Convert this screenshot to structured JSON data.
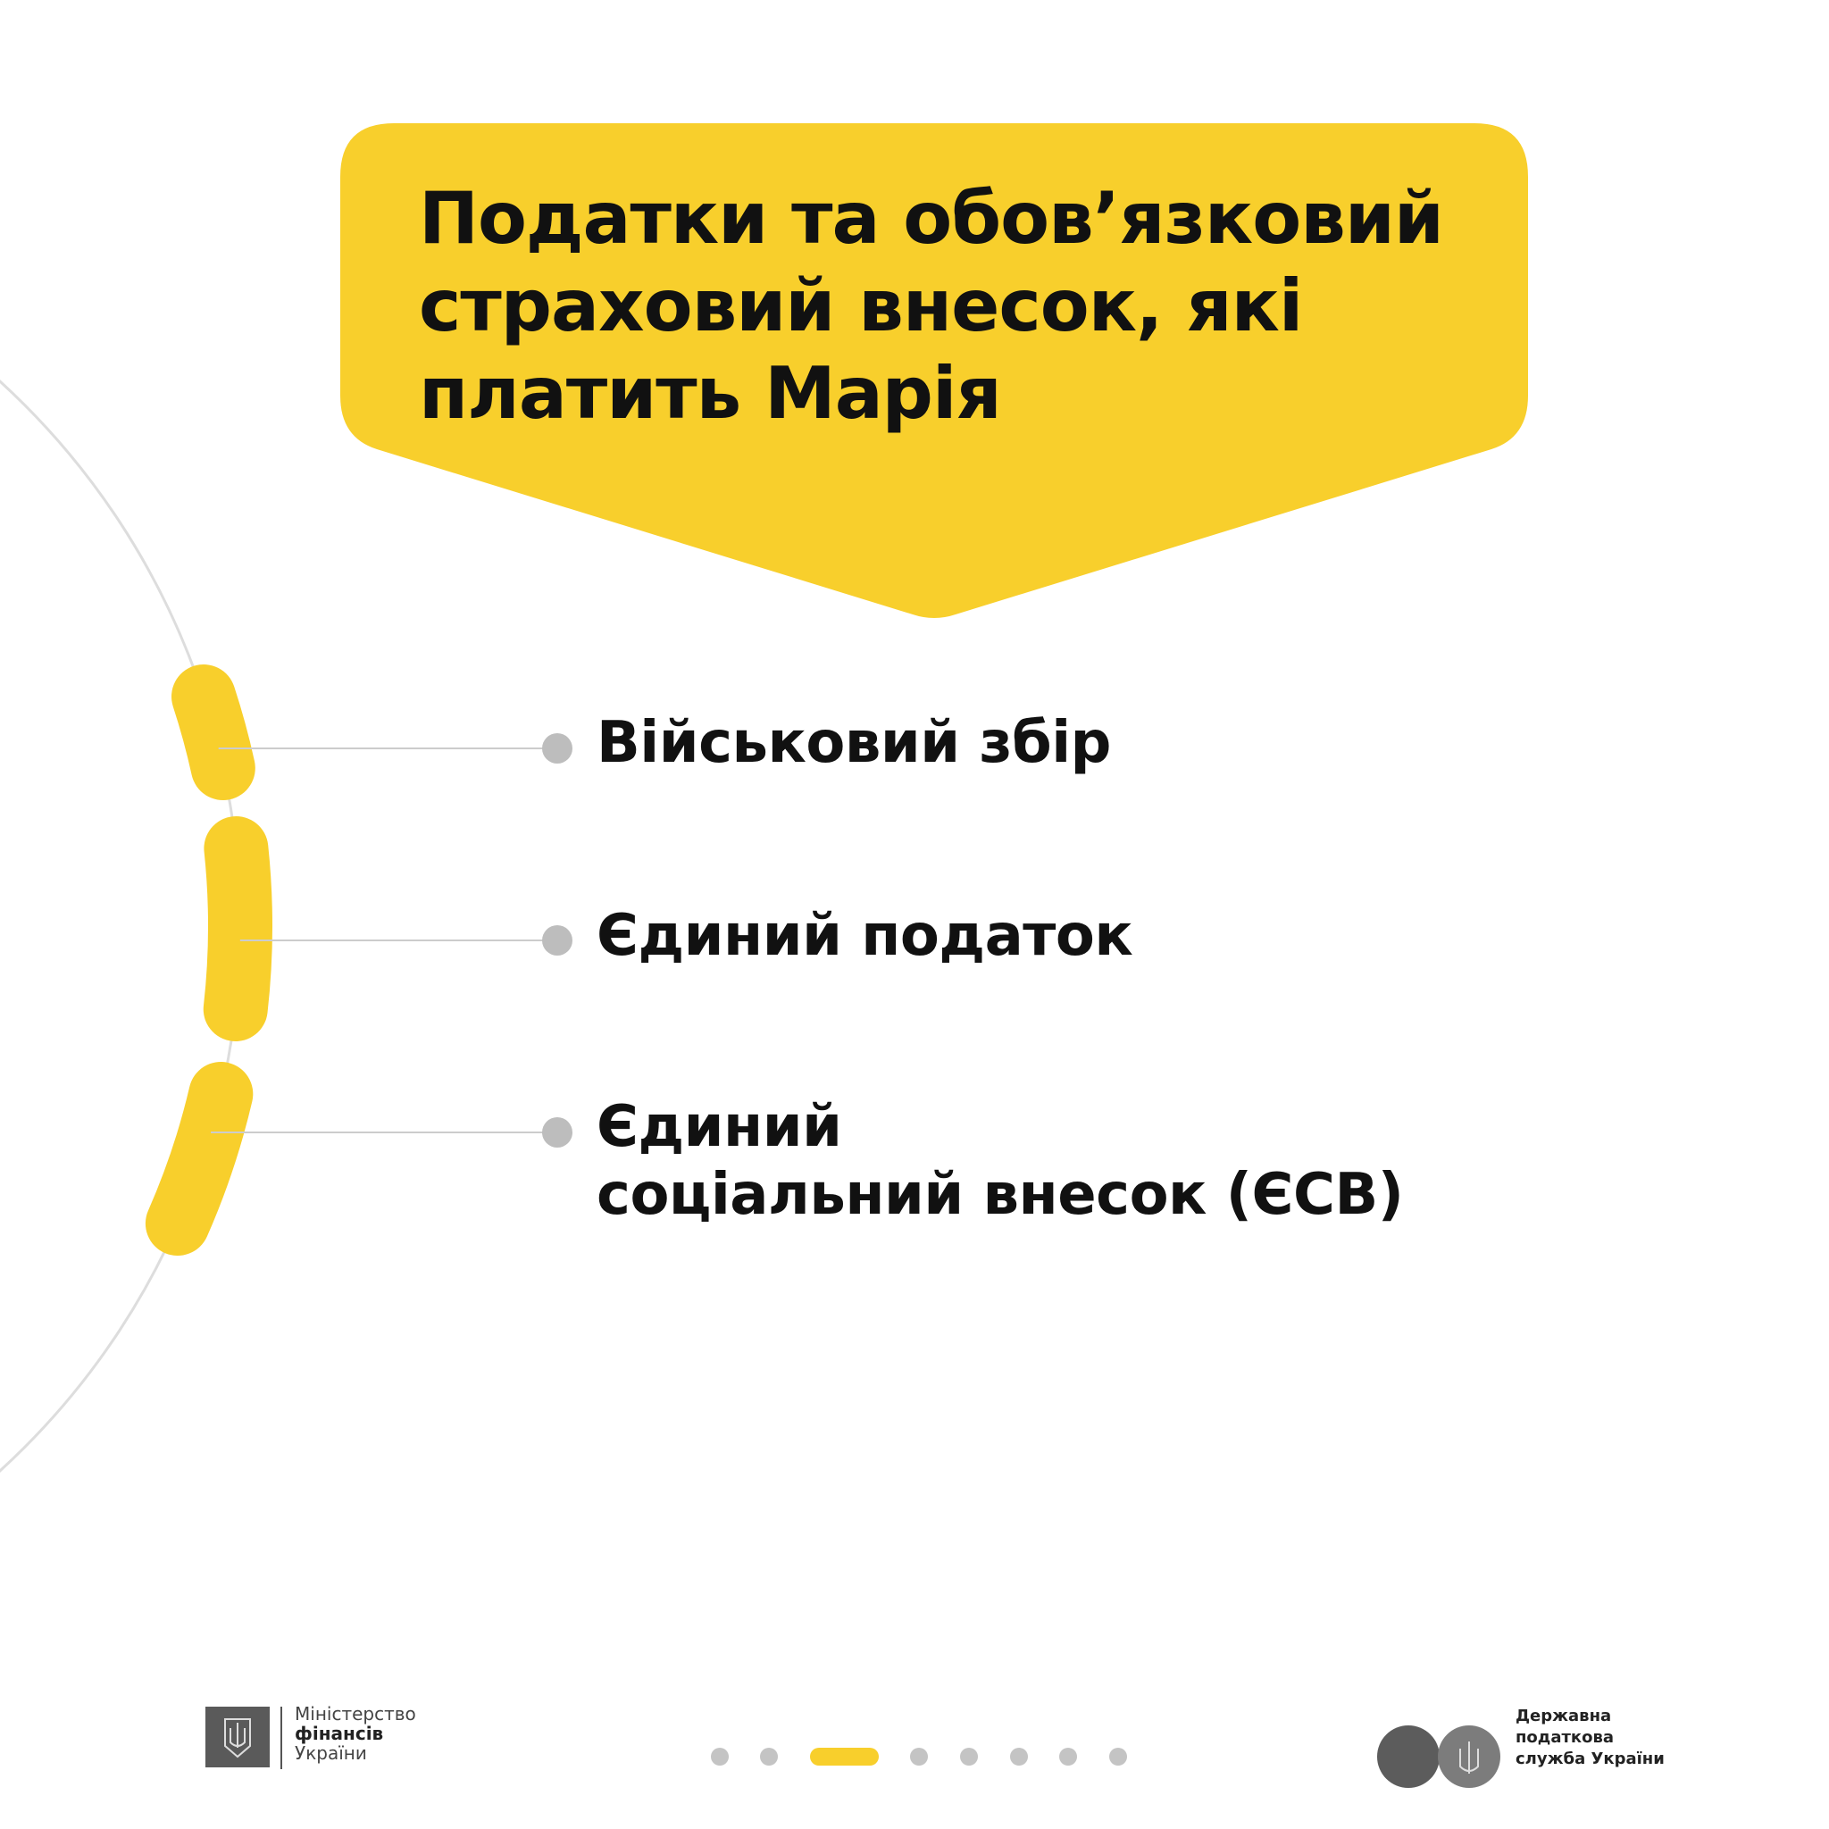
{
  "title": {
    "lines": [
      "Податки та обов’язковий",
      "страховий внесок, які",
      "платить Марія"
    ]
  },
  "items": [
    {
      "lines": [
        "Військовий збір"
      ]
    },
    {
      "lines": [
        "Єдиний податок"
      ]
    },
    {
      "lines": [
        "Єдиний",
        "соціальний внесок (ЄСВ)"
      ]
    }
  ],
  "footer": {
    "ministry_logo": {
      "lines": [
        "Міністерство",
        "фінансів",
        "України"
      ],
      "icon": "trident-icon"
    },
    "tax_service_logo": {
      "lines": [
        "Державна",
        "податкова",
        "служба України"
      ],
      "icon": "trident-icon"
    },
    "pagination": {
      "total": 8,
      "current": 3
    }
  },
  "colors": {
    "accent": "#F8CF2C",
    "text": "#111111",
    "arc": "#DDDDDD",
    "dot": "#BDBDBD"
  }
}
